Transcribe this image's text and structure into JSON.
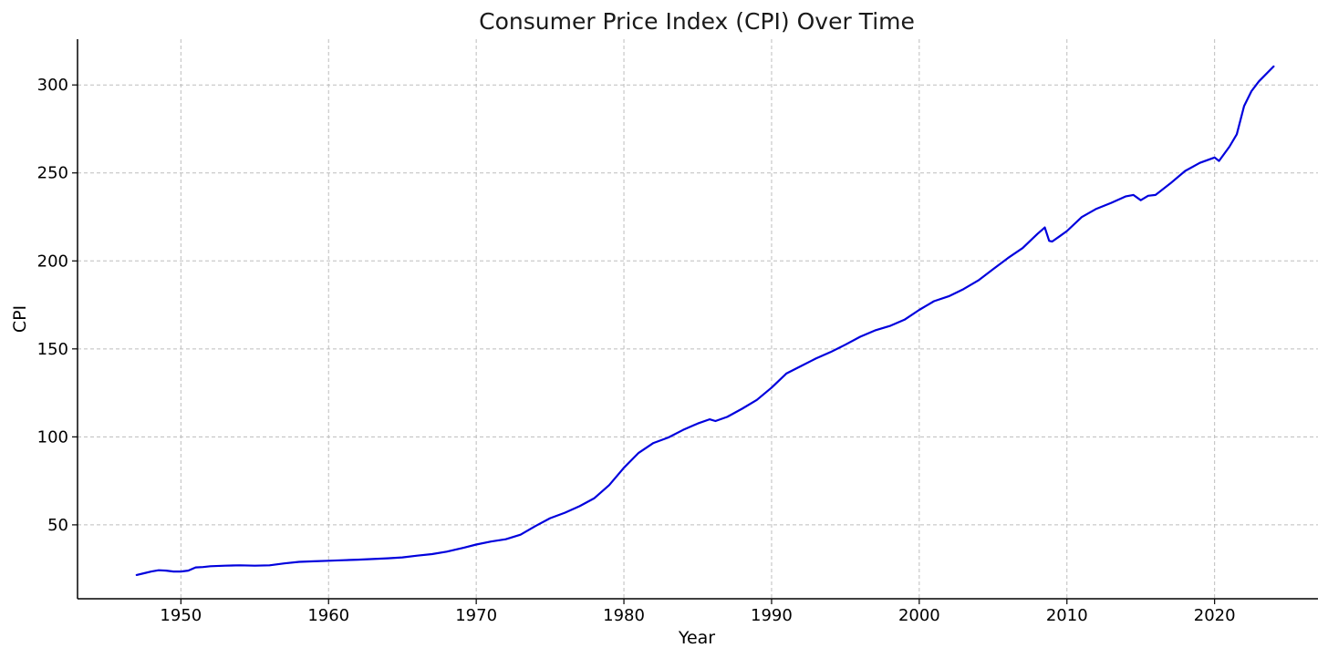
{
  "chart_data": {
    "type": "line",
    "title": "Consumer Price Index (CPI) Over Time",
    "xlabel": "Year",
    "ylabel": "CPI",
    "xlim": [
      1943,
      2027
    ],
    "ylim": [
      8,
      326
    ],
    "x_ticks": [
      1950,
      1960,
      1970,
      1980,
      1990,
      2000,
      2010,
      2020
    ],
    "x_tick_labels": [
      "1950",
      "1960",
      "1970",
      "1980",
      "1990",
      "2000",
      "2010",
      "2020"
    ],
    "y_ticks": [
      50,
      100,
      150,
      200,
      250,
      300
    ],
    "y_tick_labels": [
      "50",
      "100",
      "150",
      "200",
      "250",
      "300"
    ],
    "grid": true,
    "line_color": "#0000dd",
    "series": [
      {
        "name": "CPI",
        "x": [
          1947.0,
          1947.5,
          1948.0,
          1948.5,
          1949.0,
          1949.5,
          1950.0,
          1950.5,
          1951.0,
          1951.5,
          1952.0,
          1953.0,
          1954.0,
          1955.0,
          1956.0,
          1957.0,
          1958.0,
          1959.0,
          1960.0,
          1961.0,
          1962.0,
          1963.0,
          1964.0,
          1965.0,
          1966.0,
          1967.0,
          1968.0,
          1969.0,
          1970.0,
          1971.0,
          1972.0,
          1973.0,
          1974.0,
          1975.0,
          1976.0,
          1977.0,
          1978.0,
          1979.0,
          1980.0,
          1981.0,
          1982.0,
          1983.0,
          1984.0,
          1985.0,
          1985.8,
          1986.2,
          1987.0,
          1988.0,
          1989.0,
          1990.0,
          1991.0,
          1992.0,
          1993.0,
          1994.0,
          1995.0,
          1996.0,
          1997.0,
          1998.0,
          1999.0,
          2000.0,
          2001.0,
          2002.0,
          2003.0,
          2004.0,
          2005.0,
          2006.0,
          2007.0,
          2008.0,
          2008.5,
          2008.8,
          2009.0,
          2009.5,
          2010.0,
          2011.0,
          2012.0,
          2013.0,
          2014.0,
          2014.5,
          2015.0,
          2015.5,
          2016.0,
          2017.0,
          2018.0,
          2019.0,
          2020.0,
          2020.3,
          2021.0,
          2021.5,
          2022.0,
          2022.5,
          2023.0,
          2024.0
        ],
        "values": [
          21.5,
          22.5,
          23.5,
          24.2,
          24.0,
          23.5,
          23.5,
          24.0,
          25.8,
          26.0,
          26.5,
          26.8,
          27.0,
          26.8,
          27.0,
          28.1,
          29.0,
          29.3,
          29.6,
          29.9,
          30.2,
          30.6,
          31.0,
          31.5,
          32.5,
          33.4,
          34.8,
          36.7,
          38.8,
          40.5,
          41.8,
          44.4,
          49.3,
          53.8,
          56.9,
          60.6,
          65.2,
          72.6,
          82.4,
          90.9,
          96.5,
          99.6,
          103.9,
          107.6,
          110.0,
          109.0,
          111.4,
          116.0,
          121.0,
          128.0,
          136.0,
          140.3,
          144.5,
          148.2,
          152.4,
          156.9,
          160.5,
          163.0,
          166.6,
          172.2,
          177.1,
          179.9,
          184.0,
          188.9,
          195.3,
          201.6,
          207.3,
          215.3,
          219.0,
          211.4,
          211.0,
          214.0,
          217.0,
          224.9,
          229.6,
          233.0,
          236.7,
          237.5,
          234.5,
          237.0,
          237.5,
          244.0,
          251.1,
          255.7,
          258.8,
          256.8,
          264.9,
          272.0,
          288.0,
          296.5,
          302.0,
          310.5
        ]
      }
    ]
  }
}
